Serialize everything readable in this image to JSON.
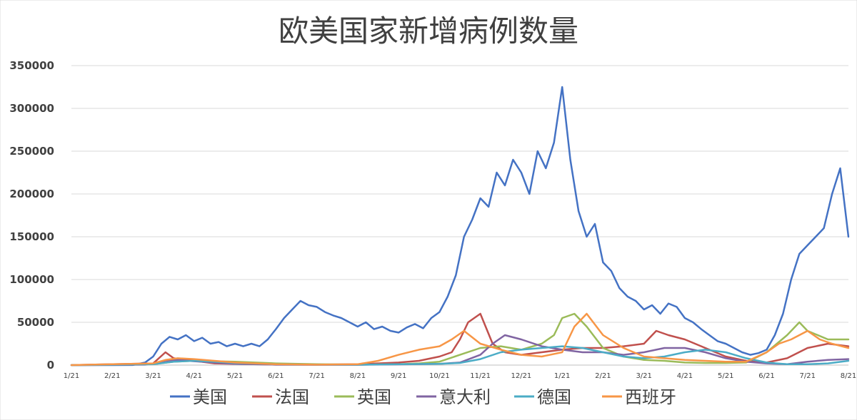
{
  "chart_data": {
    "type": "line",
    "title": "欧美国家新增病例数量",
    "xlabel": "",
    "ylabel": "",
    "ylim": [
      0,
      350000
    ],
    "yticks": [
      0,
      50000,
      100000,
      150000,
      200000,
      250000,
      300000,
      350000
    ],
    "x_range_months": [
      0,
      19
    ],
    "x_tick_labels": [
      "1/21",
      "2/21",
      "3/21",
      "4/21",
      "5/21",
      "6/21",
      "7/21",
      "8/21",
      "9/21",
      "10/21",
      "11/21",
      "12/21",
      "1/21",
      "2/21",
      "3/21",
      "4/21",
      "5/21",
      "6/21",
      "7/21",
      "8/21"
    ],
    "grid": true,
    "legend_position": "bottom",
    "series": [
      {
        "name": "美国",
        "color": "#4472C4",
        "x": [
          0,
          1,
          1.5,
          1.8,
          2.0,
          2.2,
          2.4,
          2.6,
          2.8,
          3.0,
          3.2,
          3.4,
          3.6,
          3.8,
          4.0,
          4.2,
          4.4,
          4.6,
          4.8,
          5.0,
          5.2,
          5.4,
          5.6,
          5.8,
          6.0,
          6.2,
          6.4,
          6.6,
          6.8,
          7.0,
          7.2,
          7.4,
          7.6,
          7.8,
          8.0,
          8.2,
          8.4,
          8.6,
          8.8,
          9.0,
          9.2,
          9.4,
          9.6,
          9.8,
          10.0,
          10.2,
          10.4,
          10.6,
          10.8,
          11.0,
          11.2,
          11.4,
          11.6,
          11.8,
          12.0,
          12.2,
          12.4,
          12.6,
          12.8,
          13.0,
          13.2,
          13.4,
          13.6,
          13.8,
          14.0,
          14.2,
          14.4,
          14.6,
          14.8,
          15.0,
          15.2,
          15.4,
          15.6,
          15.8,
          16.0,
          16.2,
          16.4,
          16.6,
          16.8,
          17.0,
          17.2,
          17.4,
          17.6,
          17.8,
          18.0,
          18.2,
          18.4,
          18.6,
          18.8,
          19.0
        ],
        "y": [
          0,
          0,
          100,
          3000,
          10000,
          25000,
          33000,
          30000,
          35000,
          28000,
          32000,
          25000,
          27000,
          22000,
          25000,
          22000,
          25000,
          22000,
          30000,
          42000,
          55000,
          65000,
          75000,
          70000,
          68000,
          62000,
          58000,
          55000,
          50000,
          45000,
          50000,
          42000,
          45000,
          40000,
          38000,
          44000,
          48000,
          43000,
          55000,
          62000,
          80000,
          105000,
          150000,
          170000,
          195000,
          185000,
          225000,
          210000,
          240000,
          225000,
          200000,
          250000,
          230000,
          260000,
          325000,
          240000,
          180000,
          150000,
          165000,
          120000,
          110000,
          90000,
          80000,
          75000,
          65000,
          70000,
          60000,
          72000,
          68000,
          55000,
          50000,
          42000,
          35000,
          28000,
          25000,
          20000,
          15000,
          12000,
          14000,
          18000,
          35000,
          60000,
          100000,
          130000,
          140000,
          150000,
          160000,
          200000,
          230000,
          150000
        ]
      },
      {
        "name": "法国",
        "color": "#C0504D",
        "x": [
          0,
          2.0,
          2.3,
          2.5,
          3.0,
          3.5,
          4.0,
          5.0,
          6.0,
          7.0,
          8.0,
          8.5,
          9.0,
          9.3,
          9.5,
          9.7,
          10.0,
          10.3,
          10.6,
          11.0,
          11.5,
          12.0,
          12.5,
          13.0,
          13.5,
          14.0,
          14.3,
          14.6,
          15.0,
          15.5,
          16.0,
          16.5,
          17.0,
          17.5,
          18.0,
          18.5,
          19.0
        ],
        "y": [
          0,
          2000,
          15000,
          8000,
          5000,
          2000,
          1500,
          500,
          500,
          1000,
          3000,
          5000,
          10000,
          15000,
          30000,
          50000,
          60000,
          25000,
          15000,
          12000,
          15000,
          18000,
          20000,
          20000,
          22000,
          25000,
          40000,
          35000,
          30000,
          20000,
          10000,
          5000,
          3000,
          8000,
          20000,
          25000,
          22000
        ]
      },
      {
        "name": "英国",
        "color": "#9BBB59",
        "x": [
          0,
          2.0,
          2.5,
          3.0,
          3.5,
          4.0,
          5.0,
          6.0,
          7.0,
          8.0,
          8.5,
          9.0,
          9.5,
          10.0,
          10.5,
          11.0,
          11.5,
          11.8,
          12.0,
          12.3,
          12.6,
          13.0,
          13.5,
          14.0,
          14.5,
          15.0,
          15.5,
          16.0,
          16.5,
          17.0,
          17.5,
          17.8,
          18.0,
          18.5,
          19.0
        ],
        "y": [
          0,
          1000,
          4000,
          5000,
          4500,
          4000,
          2000,
          1000,
          500,
          1000,
          2000,
          4000,
          12000,
          20000,
          22000,
          18000,
          25000,
          35000,
          55000,
          60000,
          45000,
          20000,
          10000,
          6000,
          5000,
          3000,
          2500,
          2500,
          3000,
          15000,
          35000,
          50000,
          40000,
          30000,
          30000
        ]
      },
      {
        "name": "意大利",
        "color": "#8064A2",
        "x": [
          0,
          1.8,
          2.0,
          2.3,
          2.6,
          3.0,
          3.5,
          4.0,
          5.0,
          6.0,
          7.0,
          8.0,
          9.0,
          9.5,
          10.0,
          10.3,
          10.6,
          11.0,
          11.5,
          12.0,
          12.5,
          13.0,
          13.5,
          14.0,
          14.5,
          15.0,
          15.5,
          16.0,
          16.5,
          17.0,
          17.5,
          18.0,
          18.5,
          19.0
        ],
        "y": [
          0,
          500,
          2000,
          5000,
          6000,
          4500,
          3000,
          1500,
          500,
          300,
          300,
          800,
          1500,
          3000,
          12000,
          25000,
          35000,
          30000,
          22000,
          18000,
          15000,
          15000,
          12000,
          15000,
          20000,
          20000,
          15000,
          8000,
          4000,
          2000,
          1000,
          4000,
          6000,
          7000
        ]
      },
      {
        "name": "德国",
        "color": "#4BACC6",
        "x": [
          0,
          2.0,
          2.5,
          3.0,
          3.5,
          4.0,
          5.0,
          6.0,
          7.0,
          8.0,
          9.0,
          9.5,
          10.0,
          10.5,
          11.0,
          11.5,
          12.0,
          12.5,
          13.0,
          13.5,
          14.0,
          14.5,
          15.0,
          15.5,
          16.0,
          16.5,
          17.0,
          17.5,
          18.0,
          18.5,
          19.0
        ],
        "y": [
          0,
          1000,
          4000,
          5000,
          4000,
          2500,
          1000,
          500,
          500,
          1000,
          1500,
          2500,
          7000,
          15000,
          18000,
          20000,
          22000,
          20000,
          15000,
          10000,
          8000,
          10000,
          15000,
          18000,
          15000,
          8000,
          3000,
          1000,
          1000,
          2000,
          5000
        ]
      },
      {
        "name": "西班牙",
        "color": "#F79646",
        "x": [
          0,
          2.0,
          2.3,
          2.6,
          3.0,
          3.5,
          4.0,
          5.0,
          6.0,
          7.0,
          7.5,
          8.0,
          8.5,
          9.0,
          9.3,
          9.6,
          10.0,
          10.5,
          11.0,
          11.5,
          12.0,
          12.3,
          12.6,
          13.0,
          13.5,
          14.0,
          14.5,
          15.0,
          15.5,
          16.0,
          16.5,
          17.0,
          17.3,
          17.6,
          18.0,
          18.3,
          18.6,
          19.0
        ],
        "y": [
          0,
          2000,
          6000,
          8000,
          7000,
          5000,
          3000,
          1000,
          500,
          1000,
          5000,
          12000,
          18000,
          22000,
          30000,
          40000,
          25000,
          18000,
          12000,
          10000,
          15000,
          45000,
          60000,
          35000,
          20000,
          10000,
          8000,
          6000,
          5000,
          4000,
          4000,
          15000,
          25000,
          30000,
          40000,
          30000,
          25000,
          20000
        ]
      }
    ]
  }
}
